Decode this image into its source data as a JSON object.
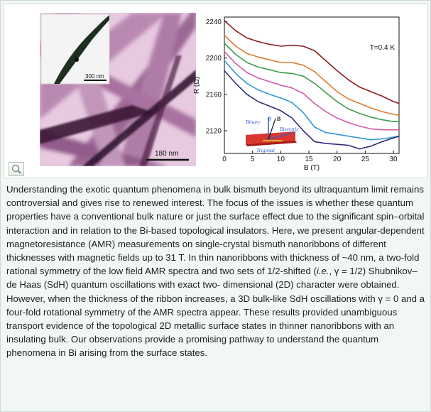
{
  "figure": {
    "inset_scale_label": "300 nm",
    "main_scale_label": "180 nm",
    "zoom_icon": "magnifier-icon"
  },
  "chart_data": {
    "type": "line",
    "title": "",
    "xlabel": "B (T)",
    "ylabel": "R (Ω)",
    "xlim": [
      0,
      31
    ],
    "ylim": [
      2095,
      2245
    ],
    "x_ticks": [
      0,
      5,
      10,
      15,
      20,
      25,
      30
    ],
    "y_ticks": [
      2120,
      2160,
      2200,
      2240
    ],
    "grid": false,
    "annotation": "T=0.4 K",
    "inset_labels": {
      "binary": "Binary",
      "theta": "θ",
      "b": "B",
      "bisectrix": "Bisectrix",
      "trigonal": "Trigonal"
    },
    "series": [
      {
        "color": "#8b1c1c",
        "x": [
          0,
          2,
          4,
          6,
          8,
          10,
          12,
          14,
          16,
          18,
          20,
          22,
          24,
          26,
          28,
          30,
          31
        ],
        "y": [
          2241,
          2230,
          2222,
          2218,
          2215,
          2213,
          2214,
          2213,
          2208,
          2197,
          2186,
          2176,
          2168,
          2163,
          2158,
          2152,
          2150
        ]
      },
      {
        "color": "#e07a2b",
        "x": [
          0,
          2,
          4,
          6,
          8,
          10,
          12,
          14,
          16,
          18,
          20,
          22,
          24,
          26,
          28,
          30,
          31
        ],
        "y": [
          2225,
          2213,
          2205,
          2201,
          2198,
          2195,
          2195,
          2192,
          2185,
          2174,
          2163,
          2155,
          2150,
          2145,
          2141,
          2138,
          2137
        ]
      },
      {
        "color": "#3a9e4c",
        "x": [
          0,
          2,
          4,
          6,
          8,
          10,
          12,
          14,
          16,
          18,
          20,
          22,
          24,
          26,
          28,
          30,
          31
        ],
        "y": [
          2216,
          2204,
          2195,
          2190,
          2187,
          2184,
          2183,
          2180,
          2172,
          2162,
          2152,
          2144,
          2139,
          2135,
          2132,
          2130,
          2130
        ]
      },
      {
        "color": "#d45aa8",
        "x": [
          0,
          2,
          4,
          6,
          8,
          10,
          12,
          14,
          16,
          18,
          20,
          22,
          24,
          26,
          28,
          30,
          31
        ],
        "y": [
          2207,
          2194,
          2184,
          2178,
          2174,
          2170,
          2167,
          2161,
          2150,
          2141,
          2134,
          2129,
          2125,
          2122,
          2121,
          2121,
          2121
        ]
      },
      {
        "color": "#2e9ad6",
        "x": [
          0,
          2,
          4,
          6,
          8,
          10,
          12,
          14,
          16,
          18,
          20,
          22,
          24,
          26,
          28,
          30,
          31
        ],
        "y": [
          2197,
          2183,
          2172,
          2165,
          2160,
          2156,
          2151,
          2140,
          2124,
          2118,
          2116,
          2114,
          2112,
          2110,
          2111,
          2113,
          2114
        ]
      },
      {
        "color": "#2f2a7a",
        "x": [
          0,
          2,
          4,
          6,
          8,
          10,
          12,
          14,
          16,
          18,
          20,
          22,
          24,
          26,
          28,
          30,
          31
        ],
        "y": [
          2186,
          2172,
          2160,
          2152,
          2147,
          2142,
          2134,
          2120,
          2108,
          2106,
          2105,
          2104,
          2100,
          2103,
          2108,
          2112,
          2114
        ]
      }
    ]
  },
  "abstract": {
    "s1": "Understanding the exotic quantum phenomena in bulk bismuth beyond its ultraquantum limit remains controversial and gives rise to renewed interest. The focus of the issues is whether these quantum properties have a conventional bulk nature or just the surface effect due to the significant spin–orbital interaction and in relation to the Bi-based topological insulators. Here, we present angular-dependent magnetoresistance (AMR) measurements on single-crystal bismuth nanoribbons of different thicknesses with magnetic fields up to 31 T. In thin nanoribbons with thickness of ~40 nm, a two-fold rational symmetry of the low field AMR spectra and two sets of 1/2-shifted (",
    "ie": "i.e.",
    "s2": ", γ = 1/2) Shubnikov–de Haas (SdH) quantum oscillations with exact two- dimensional (2D) character were obtained. However, when the thickness of the ribbon increases, a 3D bulk-like SdH oscillations with γ = 0 and a four-fold rotational symmetry of the AMR spectra appear. These results provided unambiguous transport evidence of the topological 2D metallic surface states in thinner nanoribbons with an insulating bulk. Our observations provide a promising pathway to understand the quantum phenomena in Bi arising from the surface states."
  }
}
